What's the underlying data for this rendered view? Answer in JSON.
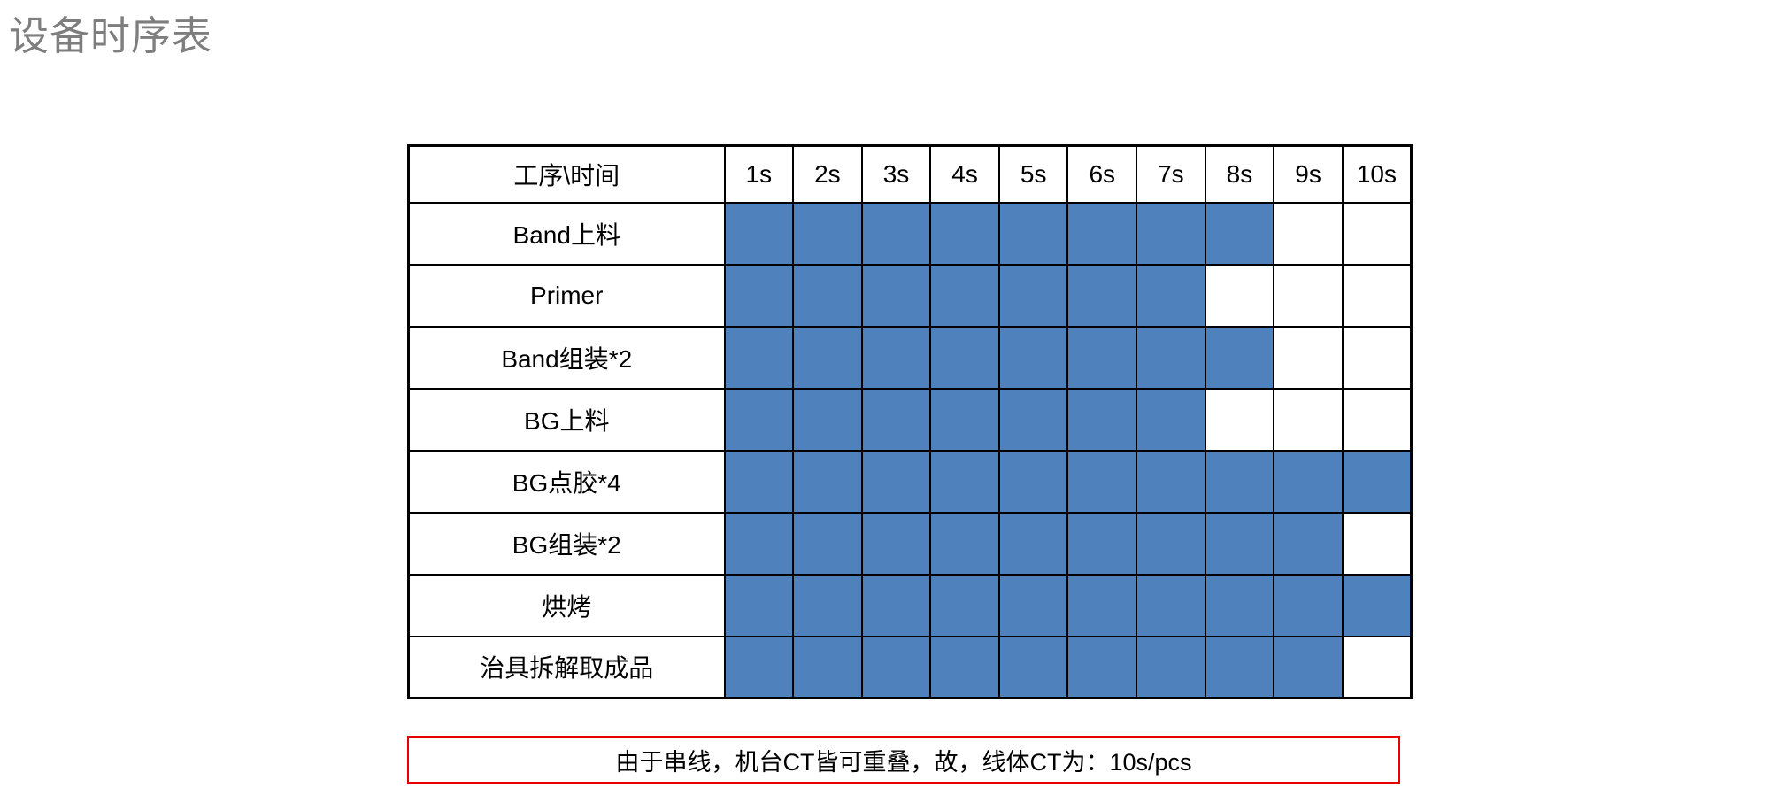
{
  "title": "设备时序表",
  "chart_data": {
    "type": "table",
    "subtype": "gantt-timing-grid",
    "title": "设备时序表",
    "corner_label": "工序\\时间",
    "x_labels": [
      "1s",
      "2s",
      "3s",
      "4s",
      "5s",
      "6s",
      "7s",
      "8s",
      "9s",
      "10s"
    ],
    "x_unit": "seconds",
    "x_range": [
      1,
      10
    ],
    "rows": [
      {
        "label": "Band上料",
        "duration_s": 8,
        "start_s": 1,
        "end_s": 8,
        "filled": [
          1,
          1,
          1,
          1,
          1,
          1,
          1,
          1,
          0,
          0
        ]
      },
      {
        "label": "Primer",
        "duration_s": 7,
        "start_s": 1,
        "end_s": 7,
        "filled": [
          1,
          1,
          1,
          1,
          1,
          1,
          1,
          0,
          0,
          0
        ]
      },
      {
        "label": "Band组装*2",
        "duration_s": 8,
        "start_s": 1,
        "end_s": 8,
        "filled": [
          1,
          1,
          1,
          1,
          1,
          1,
          1,
          1,
          0,
          0
        ]
      },
      {
        "label": "BG上料",
        "duration_s": 7,
        "start_s": 1,
        "end_s": 7,
        "filled": [
          1,
          1,
          1,
          1,
          1,
          1,
          1,
          0,
          0,
          0
        ]
      },
      {
        "label": "BG点胶*4",
        "duration_s": 10,
        "start_s": 1,
        "end_s": 10,
        "filled": [
          1,
          1,
          1,
          1,
          1,
          1,
          1,
          1,
          1,
          1
        ]
      },
      {
        "label": "BG组装*2",
        "duration_s": 9,
        "start_s": 1,
        "end_s": 9,
        "filled": [
          1,
          1,
          1,
          1,
          1,
          1,
          1,
          1,
          1,
          0
        ]
      },
      {
        "label": "烘烤",
        "duration_s": 10,
        "start_s": 1,
        "end_s": 10,
        "filled": [
          1,
          1,
          1,
          1,
          1,
          1,
          1,
          1,
          1,
          1
        ]
      },
      {
        "label": "治具拆解取成品",
        "duration_s": 9,
        "start_s": 1,
        "end_s": 9,
        "filled": [
          1,
          1,
          1,
          1,
          1,
          1,
          1,
          1,
          1,
          0
        ]
      }
    ],
    "legend": "none",
    "grid": true
  },
  "note": {
    "text": "由于串线，机台CT皆可重叠，故，线体CT为：10s/pcs"
  },
  "colors": {
    "fill": "#4F81BD",
    "grid": "#000000",
    "note-border": "#E60000",
    "title-color": "#7E7E7E"
  }
}
